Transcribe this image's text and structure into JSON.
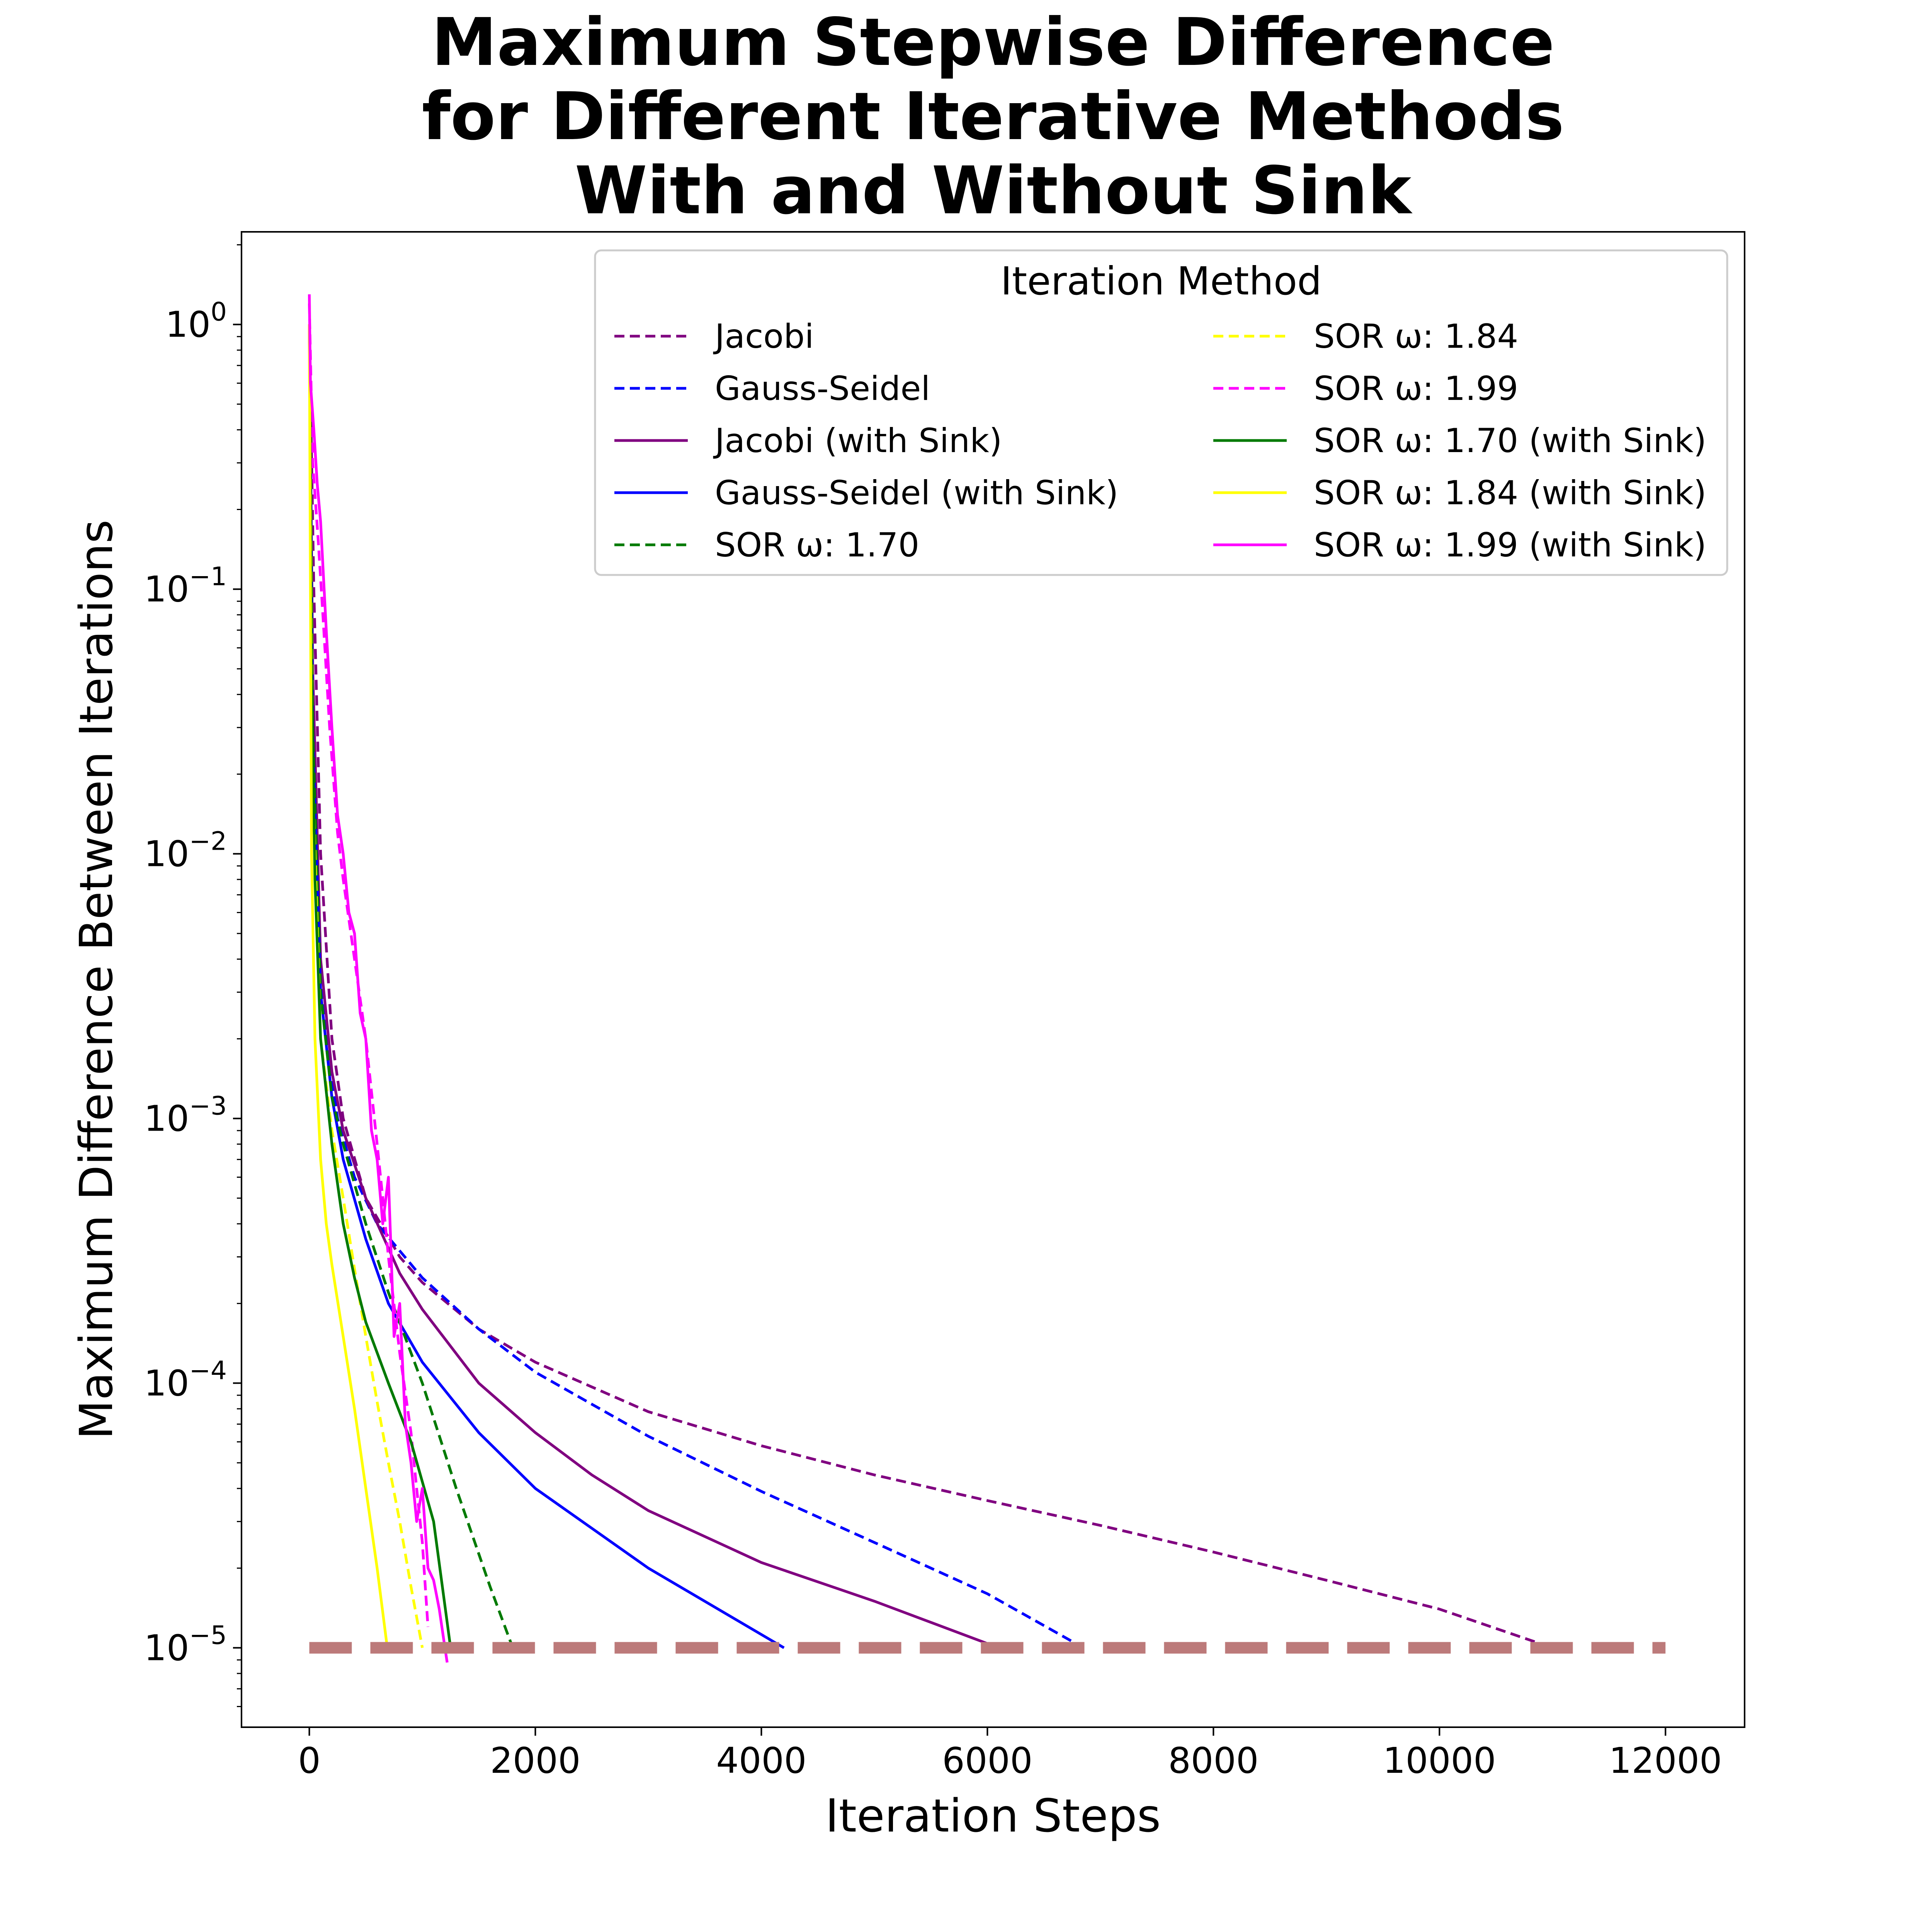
{
  "chart_data": {
    "type": "line",
    "title": [
      "Maximum Stepwise Difference",
      "for Different Iterative Methods",
      "With and Without Sink"
    ],
    "xlabel": "Iteration Steps",
    "ylabel": "Maximum Difference Between Iterations",
    "xlim": [
      -600,
      12700
    ],
    "ylim_log10": [
      -5.3,
      0.35
    ],
    "yscale": "log",
    "x_ticks": [
      0,
      2000,
      4000,
      6000,
      8000,
      10000,
      12000
    ],
    "x_tick_labels": [
      "0",
      "2000",
      "4000",
      "6000",
      "8000",
      "10000",
      "12000"
    ],
    "y_ticks_exponent": [
      0,
      -1,
      -2,
      -3,
      -4,
      -5
    ],
    "y_tick_labels": [
      {
        "base": "10",
        "exp": "0"
      },
      {
        "base": "10",
        "exp": "−1"
      },
      {
        "base": "10",
        "exp": "−2"
      },
      {
        "base": "10",
        "exp": "−3"
      },
      {
        "base": "10",
        "exp": "−4"
      },
      {
        "base": "10",
        "exp": "−5"
      }
    ],
    "grid": false,
    "legend": {
      "title": "Iteration Method",
      "placement": "top-right",
      "columns": 2
    },
    "threshold": {
      "y": 1e-05,
      "x_range": [
        0,
        12000
      ],
      "color": "#bc7a7a"
    },
    "series": [
      {
        "name": "Jacobi",
        "color": "#800080",
        "dash": true,
        "x": [
          0,
          40,
          100,
          200,
          300,
          500,
          800,
          1000,
          1500,
          2000,
          3000,
          4000,
          5000,
          6000,
          7000,
          8000,
          9000,
          10000,
          11000
        ],
        "y": [
          1.0,
          0.1,
          0.01,
          0.002,
          0.001,
          0.0005,
          0.0003,
          0.00024,
          0.00016,
          0.00012,
          7.8e-05,
          5.8e-05,
          4.5e-05,
          3.6e-05,
          2.9e-05,
          2.3e-05,
          1.8e-05,
          1.4e-05,
          1e-05
        ]
      },
      {
        "name": "Gauss-Seidel",
        "color": "#0000ff",
        "dash": true,
        "x": [
          0,
          30,
          80,
          150,
          250,
          400,
          600,
          1000,
          1500,
          2000,
          3000,
          4000,
          5000,
          6000,
          6850
        ],
        "y": [
          1.0,
          0.05,
          0.005,
          0.002,
          0.001,
          0.0006,
          0.0004,
          0.00025,
          0.00016,
          0.00011,
          6.3e-05,
          3.9e-05,
          2.5e-05,
          1.6e-05,
          1e-05
        ]
      },
      {
        "name": "Jacobi (with Sink)",
        "color": "#800080",
        "dash": false,
        "x": [
          0,
          30,
          100,
          200,
          300,
          500,
          800,
          1000,
          1500,
          2000,
          2500,
          3000,
          4000,
          5000,
          6100
        ],
        "y": [
          1.0,
          0.05,
          0.004,
          0.0015,
          0.0009,
          0.0005,
          0.00026,
          0.00019,
          0.0001,
          6.5e-05,
          4.5e-05,
          3.3e-05,
          2.1e-05,
          1.5e-05,
          1e-05
        ]
      },
      {
        "name": "Gauss-Seidel (with Sink)",
        "color": "#0000ff",
        "dash": false,
        "x": [
          0,
          30,
          100,
          200,
          300,
          500,
          700,
          1000,
          1500,
          2000,
          3000,
          4200
        ],
        "y": [
          1.0,
          0.03,
          0.003,
          0.0012,
          0.0007,
          0.00035,
          0.0002,
          0.00012,
          6.5e-05,
          4e-05,
          2e-05,
          1e-05
        ]
      },
      {
        "name": "SOR ω: 1.70",
        "color": "#007a00",
        "dash": true,
        "x": [
          0,
          30,
          100,
          200,
          300,
          500,
          700,
          1000,
          1300,
          1600,
          1800
        ],
        "y": [
          1.0,
          0.03,
          0.003,
          0.0012,
          0.0008,
          0.0004,
          0.00022,
          0.0001,
          4e-05,
          1.7e-05,
          1e-05
        ]
      },
      {
        "name": "SOR ω: 1.84",
        "color": "#ffff00",
        "dash": true,
        "x": [
          0,
          30,
          100,
          200,
          300,
          400,
          500,
          600,
          700,
          800,
          900,
          1000
        ],
        "y": [
          1.0,
          0.02,
          0.002,
          0.0009,
          0.0005,
          0.00027,
          0.00015,
          8.5e-05,
          5e-05,
          3e-05,
          1.7e-05,
          1e-05
        ]
      },
      {
        "name": "SOR ω: 1.99",
        "color": "#ff00ff",
        "dash": true,
        "x": [
          0,
          30,
          80,
          120,
          180,
          250,
          300,
          400,
          500,
          600,
          650,
          700,
          800,
          900,
          950,
          1000,
          1050
        ],
        "y": [
          1.2,
          0.3,
          0.15,
          0.08,
          0.03,
          0.012,
          0.008,
          0.004,
          0.002,
          0.0008,
          0.0005,
          0.0003,
          0.00013,
          6.5e-05,
          4e-05,
          2.5e-05,
          1.2e-05
        ]
      },
      {
        "name": "SOR ω: 1.70 (with Sink)",
        "color": "#007a00",
        "dash": false,
        "x": [
          0,
          20,
          50,
          100,
          200,
          300,
          400,
          500,
          700,
          900,
          1100,
          1250
        ],
        "y": [
          1.0,
          0.05,
          0.008,
          0.002,
          0.0008,
          0.0004,
          0.00025,
          0.00017,
          0.0001,
          6e-05,
          3e-05,
          1e-05
        ]
      },
      {
        "name": "SOR ω: 1.84 (with Sink)",
        "color": "#ffff00",
        "dash": false,
        "x": [
          0,
          20,
          50,
          100,
          150,
          200,
          300,
          400,
          500,
          600,
          690
        ],
        "y": [
          1.0,
          0.01,
          0.002,
          0.0007,
          0.0004,
          0.00028,
          0.00015,
          8e-05,
          4e-05,
          2e-05,
          1e-05
        ]
      },
      {
        "name": "SOR ω: 1.99 (with Sink)",
        "color": "#ff00ff",
        "dash": false,
        "x": [
          0,
          10,
          40,
          70,
          100,
          150,
          200,
          250,
          300,
          350,
          400,
          450,
          500,
          550,
          600,
          650,
          700,
          750,
          800,
          850,
          900,
          950,
          1000,
          1050,
          1100,
          1150,
          1200,
          1220
        ],
        "y": [
          1.3,
          0.6,
          0.4,
          0.25,
          0.18,
          0.07,
          0.03,
          0.014,
          0.01,
          0.006,
          0.005,
          0.0025,
          0.002,
          0.0009,
          0.0007,
          0.0004,
          0.0006,
          0.00015,
          0.0002,
          7e-05,
          5e-05,
          3e-05,
          4e-05,
          2e-05,
          1.8e-05,
          1.4e-05,
          1e-05,
          8.8e-06
        ]
      }
    ]
  }
}
